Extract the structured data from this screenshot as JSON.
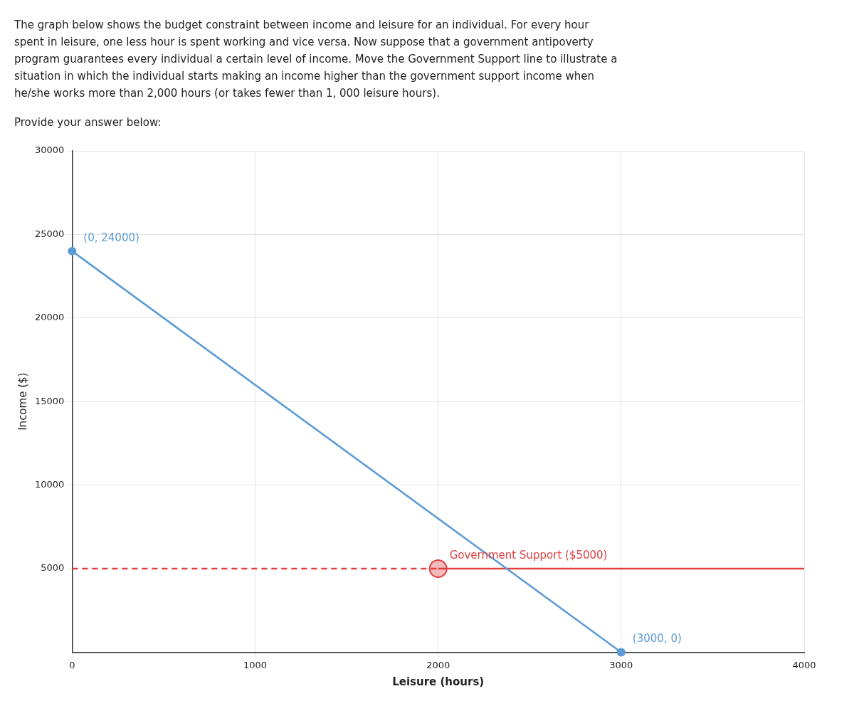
{
  "chart_data": {
    "type": "line",
    "title": [
      "The graph below shows the budget constraint between income and leisure for an individual. For every hour",
      "spent in leisure, one less hour is spent working and vice versa. Now suppose that a government antipoverty",
      "program guarantees every individual a certain level of income. Move the Government Support line to illustrate a",
      "situation in which the individual starts making an income higher than the government support income when",
      "he/she works more than 2,000 hours (or takes fewer than 1, 000 leisure hours)."
    ],
    "subtitle": "Provide your answer below:",
    "xlabel": "Leisure (hours)",
    "ylabel": "Income ($)",
    "xlim": [
      0,
      4000
    ],
    "ylim": [
      0,
      30000
    ],
    "xticks": [
      0,
      1000,
      2000,
      3000,
      4000
    ],
    "yticks": [
      5000,
      10000,
      15000,
      20000,
      25000,
      30000
    ],
    "grid": true,
    "series": [
      {
        "type": "line",
        "color": "#5b9bd5",
        "marker": "circle",
        "line_style": "solid",
        "x": [
          0,
          3000
        ],
        "values": [
          24000,
          0
        ]
      },
      {
        "type": "line",
        "color": "#e04040",
        "marker": "none",
        "line_style": "dashed",
        "x": [
          0,
          2000
        ],
        "values": [
          5000,
          5000
        ]
      },
      {
        "type": "line",
        "color": "#e04040",
        "marker": "none",
        "line_style": "solid",
        "x": [
          2000,
          4000
        ],
        "values": [
          5000,
          5000
        ]
      },
      {
        "type": "scatter",
        "color": "#e04040",
        "marker": "circle",
        "x": [
          2000
        ],
        "values": [
          5000
        ]
      }
    ],
    "annotations": [
      {
        "text": "(0, 24000)",
        "x": 0,
        "y": 24000,
        "color": "#5b9bd5"
      },
      {
        "text": "(3000, 0)",
        "x": 3000,
        "y": 0,
        "color": "#5b9bd5"
      },
      {
        "text": "Government Support ($5000)",
        "x": 2000,
        "y": 5000,
        "color": "#e04040"
      }
    ]
  }
}
